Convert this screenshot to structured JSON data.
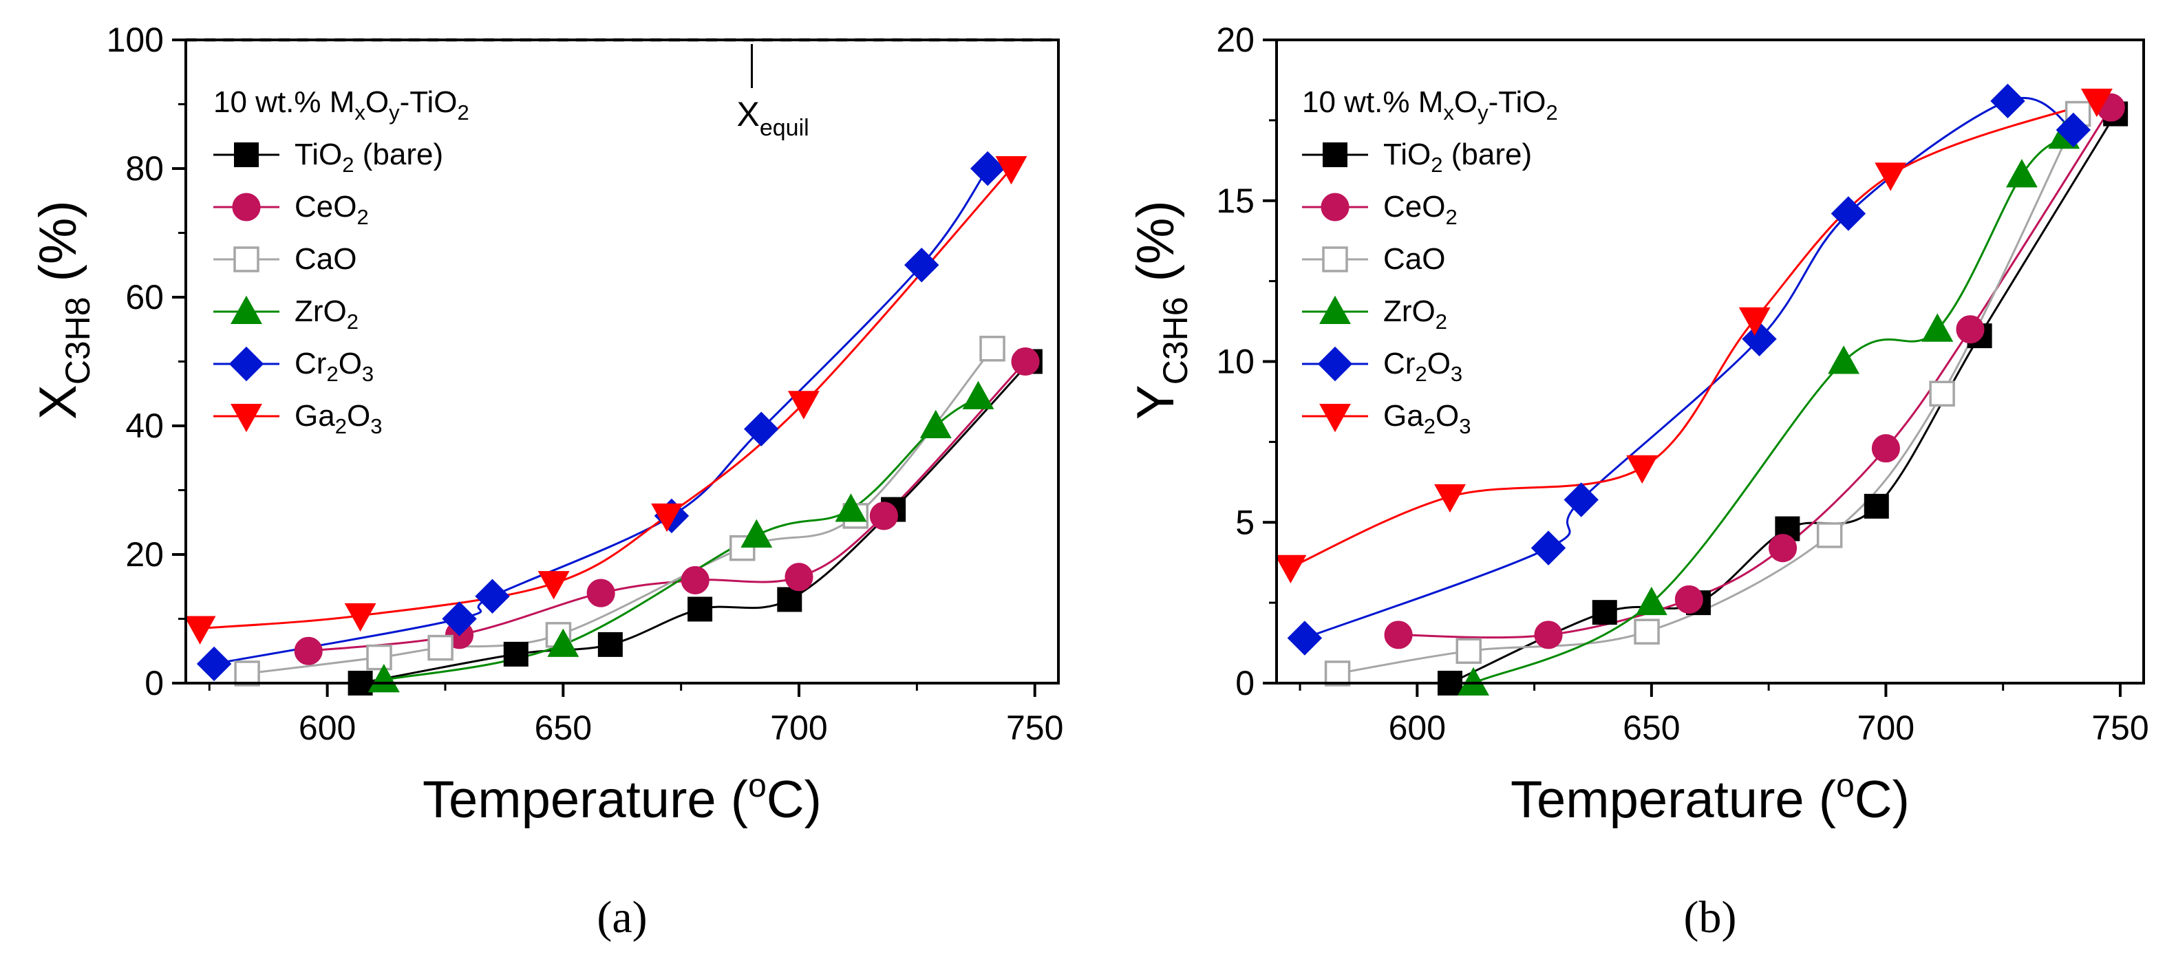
{
  "chart_data": [
    {
      "type": "scatter",
      "panel_label": "(a)",
      "xlabel": "Temperature (°C)",
      "xlabel_main": "Temperature (",
      "xlabel_sup": "o",
      "xlabel_end": "C)",
      "ylabel": "X_C3H8 (%)",
      "ylabel_main": "X",
      "ylabel_sub": "C3H8",
      "ylabel_unit": "(%)",
      "xlim": [
        570,
        755
      ],
      "ylim": [
        0,
        100
      ],
      "xticks": [
        600,
        650,
        700,
        750
      ],
      "yticks": [
        0,
        20,
        40,
        60,
        80,
        100
      ],
      "legend_title": "10 wt.% MxOy-TiO2",
      "legend_position": "top-left",
      "equilibrium": {
        "value": 100,
        "label": "X",
        "label_sub": "equil",
        "at_x": 690
      },
      "series": [
        {
          "name": "TiO2 (bare)",
          "label_main": "TiO",
          "label_sub": "2",
          "label_rest": " (bare)",
          "marker": "square",
          "filled": true,
          "color": "#000000",
          "line_color": "#000000",
          "x": [
            607,
            640,
            660,
            679,
            698,
            720,
            749
          ],
          "y": [
            0,
            4.5,
            6,
            11.5,
            13,
            27,
            50
          ]
        },
        {
          "name": "CeO2",
          "label_main": "CeO",
          "label_sub": "2",
          "label_rest": "",
          "marker": "circle",
          "filled": true,
          "color": "#C0135A",
          "line_color": "#C0135A",
          "x": [
            596,
            628,
            658,
            678,
            700,
            718,
            748
          ],
          "y": [
            5,
            7.5,
            14,
            16,
            16.5,
            26,
            50
          ]
        },
        {
          "name": "CaO",
          "label_main": "CaO",
          "label_sub": "",
          "label_rest": "",
          "marker": "square",
          "filled": false,
          "color": "#A6A6A6",
          "line_color": "#A6A6A6",
          "x": [
            583,
            611,
            624,
            649,
            688,
            712,
            741
          ],
          "y": [
            1.5,
            4,
            5.5,
            7.5,
            21,
            26,
            52
          ]
        },
        {
          "name": "ZrO2",
          "label_main": "ZrO",
          "label_sub": "2",
          "label_rest": "",
          "marker": "triangle-up",
          "filled": true,
          "color": "#008A00",
          "line_color": "#008A00",
          "x": [
            612,
            650,
            691,
            711,
            729,
            738
          ],
          "y": [
            0.5,
            6,
            23,
            27,
            40,
            44.5
          ]
        },
        {
          "name": "Cr2O3",
          "label_main": "Cr",
          "label_sub": "2",
          "label_rest": "O3",
          "marker": "diamond",
          "filled": true,
          "color": "#0016D1",
          "line_color": "#0016D1",
          "x": [
            576,
            628,
            635,
            673,
            692,
            726,
            740
          ],
          "y": [
            3,
            10,
            13.5,
            26,
            39.5,
            65,
            80
          ]
        },
        {
          "name": "Ga2O3",
          "label_main": "Ga",
          "label_sub": "2",
          "label_rest": "O3",
          "marker": "triangle-down",
          "filled": true,
          "color": "#FF0000",
          "line_color": "#FF0000",
          "x": [
            573,
            607,
            648,
            672,
            701,
            745
          ],
          "y": [
            8.5,
            10.5,
            15.5,
            26,
            43.5,
            80
          ]
        }
      ]
    },
    {
      "type": "scatter",
      "panel_label": "(b)",
      "xlabel": "Temperature (°C)",
      "xlabel_main": "Temperature (",
      "xlabel_sup": "o",
      "xlabel_end": "C)",
      "ylabel": "Y_C3H6 (%)",
      "ylabel_main": "Y",
      "ylabel_sub": "C3H6",
      "ylabel_unit": "(%)",
      "xlim": [
        570,
        755
      ],
      "ylim": [
        0,
        20
      ],
      "xticks": [
        600,
        650,
        700,
        750
      ],
      "yticks": [
        0,
        5,
        10,
        15,
        20
      ],
      "legend_title": "10 wt.% MxOy-TiO2",
      "legend_position": "top-left",
      "series": [
        {
          "name": "TiO2 (bare)",
          "label_main": "TiO",
          "label_sub": "2",
          "label_rest": " (bare)",
          "marker": "square",
          "filled": true,
          "color": "#000000",
          "line_color": "#000000",
          "x": [
            607,
            640,
            660,
            679,
            698,
            720,
            749
          ],
          "y": [
            0,
            2.2,
            2.5,
            4.8,
            5.5,
            10.8,
            17.7
          ]
        },
        {
          "name": "CeO2",
          "label_main": "CeO",
          "label_sub": "2",
          "label_rest": "",
          "marker": "circle",
          "filled": true,
          "color": "#C0135A",
          "line_color": "#C0135A",
          "x": [
            596,
            628,
            658,
            678,
            700,
            718,
            748
          ],
          "y": [
            1.5,
            1.5,
            2.6,
            4.2,
            7.3,
            11,
            17.9
          ]
        },
        {
          "name": "CaO",
          "label_main": "CaO",
          "label_sub": "",
          "label_rest": "",
          "marker": "square",
          "filled": false,
          "color": "#A6A6A6",
          "line_color": "#A6A6A6",
          "x": [
            583,
            611,
            649,
            688,
            712,
            741
          ],
          "y": [
            0.3,
            1,
            1.6,
            4.6,
            9,
            17.7
          ]
        },
        {
          "name": "ZrO2",
          "label_main": "ZrO",
          "label_sub": "2",
          "label_rest": "",
          "marker": "triangle-up",
          "filled": true,
          "color": "#008A00",
          "line_color": "#008A00",
          "x": [
            612,
            650,
            691,
            711,
            729,
            738
          ],
          "y": [
            0,
            2.5,
            10,
            11,
            15.8,
            17
          ]
        },
        {
          "name": "Cr2O3",
          "label_main": "Cr",
          "label_sub": "2",
          "label_rest": "O3",
          "marker": "diamond",
          "filled": true,
          "color": "#0016D1",
          "line_color": "#0016D1",
          "x": [
            576,
            628,
            635,
            673,
            692,
            726,
            740
          ],
          "y": [
            1.4,
            4.2,
            5.7,
            10.7,
            14.6,
            18.1,
            17.2
          ]
        },
        {
          "name": "Ga2O3",
          "label_main": "Ga",
          "label_sub": "2",
          "label_rest": "O3",
          "marker": "triangle-down",
          "filled": true,
          "color": "#FF0000",
          "line_color": "#FF0000",
          "x": [
            573,
            607,
            648,
            672,
            701,
            745
          ],
          "y": [
            3.6,
            5.8,
            6.7,
            11.3,
            15.8,
            18.1
          ]
        }
      ]
    }
  ]
}
